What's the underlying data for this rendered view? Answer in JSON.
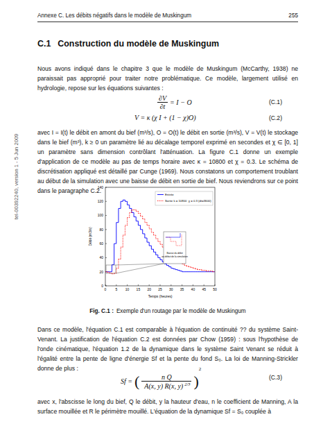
{
  "header": {
    "title": "Annexe C. Les débits négatifs dans le modèle de Muskingum",
    "page": "255"
  },
  "side_note": "tel-00392240, version 1 - 5 Jun 2009",
  "section": {
    "number": "C.1",
    "title": "Construction du modèle de Muskingum"
  },
  "paragraphs": [
    "Nous avons indiqué dans le chapitre 3 que le modèle de Muskingum (McCarthy, 1938) ne paraissait pas approprié pour traiter notre problématique. Ce modèle, largement utilisé en hydrologie, repose sur les équations suivantes :",
    "avec I = I(t) le débit en amont du bief (m³/s), O = O(t) le débit en sortie (m³/s), V = V(t) le stockage dans le bief (m³), k ≥ 0 un paramètre lié au décalage temporel exprimé en secondes et χ ∈ [0, 1] un paramètre sans dimension contrôlant l'atténuation. La figure C.1 donne un exemple d'application de ce modèle au pas de temps horaire avec κ = 10800 et χ = 0.3. Le schéma de discrétisation appliqué est détaillé par Cunge (1969). Nous constatons un comportement troublant au début de la simulation avec une baisse de débit en sortie de bief. Nous reviendrons sur ce point dans le paragraphe C.2.",
    "Dans ce modèle, l'équation C.1 est comparable à l'équation de continuité ?? du système Saint-Venant. La justification de l'équation C.2 est données par Chow (1959) : sous l'hypothèse de l'onde cinématique, l'équation 1.2 de la dynamique dans le système Saint Venant se réduit à l'égalité entre la pente de ligne d'énergie Sf et la pente du fond S₀. La loi de Manning-Strickler donne de plus :",
    "avec x, l'abscisse le long du bief, Q le débit, y la hauteur d'eau, n le coefficient de Manning, A la surface mouillée et R le périmètre mouillé. L'équation de la dynamique Sf = S₀ couplée à"
  ],
  "equations": [
    {
      "num": "∂V",
      "den": "∂t",
      "rhs": "= I − O",
      "label": "(C.1)"
    },
    {
      "text": "V = κ (χ I + (1 − χ)O)",
      "label": "(C.2)"
    },
    {
      "lhs": "Sf =",
      "num": "n Q",
      "den": "A(x, y) R(x, y)",
      "den_exp": "2/3",
      "exp": "2",
      "label": "(C.3)"
    }
  ],
  "chart_data": {
    "type": "line",
    "x_label": "Temps (heures)",
    "y_label": "Débit (m3/s)",
    "x": [
      0,
      1,
      2,
      3,
      4,
      5,
      6,
      7,
      8,
      9,
      10,
      11,
      12,
      13,
      14,
      15,
      16,
      17,
      18,
      19,
      20,
      21,
      22,
      23,
      24,
      25,
      26,
      27,
      28,
      29,
      30,
      31,
      32,
      33,
      34,
      35,
      36,
      37,
      38,
      39,
      40,
      41,
      42,
      43,
      44,
      45,
      46,
      47,
      48,
      49
    ],
    "xlim": [
      0,
      50
    ],
    "xticks": [
      0,
      5,
      10,
      15,
      20,
      25,
      30,
      35,
      40,
      45,
      50
    ],
    "ylim": [
      0,
      140
    ],
    "yticks": [
      0,
      20,
      40,
      60,
      80,
      100,
      120,
      140
    ],
    "grid": false,
    "legend": "upper right",
    "series": [
      {
        "name": "Entrée",
        "color": "#0000ff",
        "line_style": "solid",
        "values": [
          20,
          20,
          20,
          30,
          60,
          90,
          110,
          120,
          122,
          120,
          115,
          110,
          104,
          98,
          92,
          86,
          80,
          74,
          68,
          62,
          57,
          52,
          48,
          44,
          40,
          37,
          34,
          31,
          29,
          27,
          25,
          24,
          23,
          22,
          21,
          20,
          20,
          20,
          20,
          20,
          20,
          20,
          20,
          20,
          20,
          20,
          20,
          20,
          20,
          20
        ]
      },
      {
        "name": "Sortie k = 10800  χ = 0.3 (dt=3600)",
        "color": "#ff0000",
        "line_style": "dotted",
        "values": [
          20,
          19,
          18,
          17,
          18,
          25,
          38,
          55,
          72,
          86,
          97,
          104,
          108,
          108,
          106,
          103,
          99,
          95,
          90,
          86,
          81,
          76,
          72,
          67,
          63,
          59,
          55,
          51,
          48,
          45,
          42,
          39,
          37,
          35,
          33,
          31,
          29,
          28,
          27,
          26,
          25,
          24,
          23,
          23,
          22,
          22,
          21,
          21,
          21,
          20
        ]
      }
    ],
    "annotations": [
      "Baisse du débit",
      "au début de la simulation"
    ]
  },
  "caption": {
    "label": "Fig. C.1 :",
    "text": "Exemple d'un routage par le modèle de Muskingum"
  }
}
